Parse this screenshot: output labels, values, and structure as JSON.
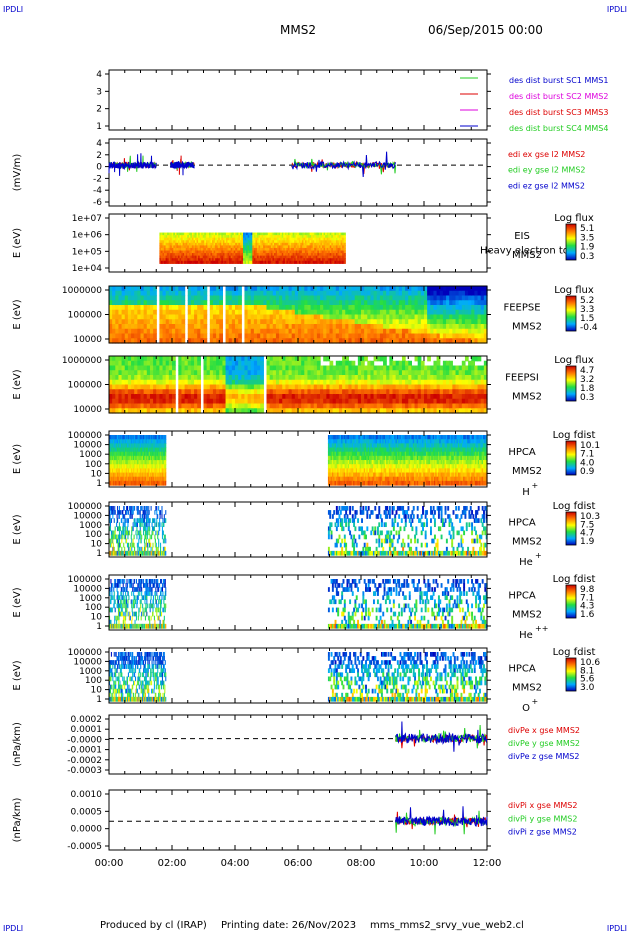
{
  "corner_tags": {
    "tl": "IPDLI",
    "tr": "IPDLI",
    "bl": "IPDLI",
    "br": "IPDLI"
  },
  "header": {
    "spacecraft": "MMS2",
    "datetime": "06/Sep/2015 00:00"
  },
  "footer": {
    "produced_by": "Produced by cl (IRAP)",
    "printing_date": "Printing date: 26/Nov/2023",
    "script": "mms_mms2_srvy_vue_web2.cl"
  },
  "colors": {
    "green": "#22cc22",
    "red": "#dd0000",
    "magenta": "#dd00dd",
    "blue": "#0000cc"
  },
  "chart_data": [
    {
      "type": "line",
      "id": "des_dist",
      "y_ticks": [
        "4",
        "3",
        "2",
        "1"
      ],
      "ylim": [
        0.7,
        4.5
      ],
      "legend": [
        {
          "label": "des dist burst SC1 MMS1",
          "label_color": "#0000cc",
          "line_color": "#22cc22"
        },
        {
          "label": "des dist burst SC2 MMS2",
          "label_color": "#dd00dd",
          "line_color": "#dd0000"
        },
        {
          "label": "des dist burst SC3 MMS3",
          "label_color": "#dd0000",
          "line_color": "#dd00dd"
        },
        {
          "label": "des dist burst SC4 MMS4",
          "label_color": "#22cc22",
          "line_color": "#0000cc"
        }
      ]
    },
    {
      "type": "line",
      "id": "edi",
      "ylabel": "(mV/m)",
      "y_ticks": [
        "4",
        "2",
        "0",
        "-2",
        "-4",
        "-6"
      ],
      "ylim": [
        -7,
        5
      ],
      "series": [
        {
          "name": "edi ex gse l2 MMS2",
          "color": "#dd0000"
        },
        {
          "name": "edi ey gse l2 MMS2",
          "color": "#22cc22"
        },
        {
          "name": "edi ez gse l2 MMS2",
          "color": "#0000cc"
        }
      ],
      "segments": [
        {
          "x": [
            0.0,
            1.5
          ]
        },
        {
          "x": [
            1.95,
            2.7
          ]
        },
        {
          "x": [
            5.8,
            9.1
          ]
        }
      ]
    },
    {
      "type": "heatmap",
      "id": "eis",
      "ylabel": "E (eV)",
      "y_ticks": [
        "1e+07",
        "1e+06",
        "1e+05",
        "1e+04"
      ],
      "ylog": true,
      "label": "EIS",
      "label2": "MMS2",
      "extra": "Heavy electron to",
      "cb_title": "Log flux",
      "cb_ticks": [
        "5.1",
        "3.5",
        "1.9",
        "0.3"
      ],
      "coverage": [
        {
          "x": [
            1.6,
            7.5
          ]
        }
      ]
    },
    {
      "type": "heatmap",
      "id": "feepse",
      "ylabel": "E (eV)",
      "y_ticks": [
        "1000000",
        "100000",
        "10000"
      ],
      "ylog": true,
      "label": "FEEPSE",
      "label2": "MMS2",
      "cb_title": "Log flux",
      "cb_ticks": [
        "5.2",
        "3.3",
        "1.5",
        "-0.4"
      ],
      "coverage": [
        {
          "x": [
            0.0,
            12.0
          ]
        }
      ]
    },
    {
      "type": "heatmap",
      "id": "feepsi",
      "ylabel": "E (eV)",
      "y_ticks": [
        "1000000",
        "100000",
        "10000"
      ],
      "ylog": true,
      "label": "FEEPSI",
      "label2": "MMS2",
      "cb_title": "Log flux",
      "cb_ticks": [
        "4.7",
        "3.2",
        "1.8",
        "0.3"
      ],
      "coverage": [
        {
          "x": [
            0.0,
            12.0
          ]
        }
      ]
    },
    {
      "type": "heatmap",
      "id": "hpca_h",
      "ylabel": "E (eV)",
      "y_ticks": [
        "100000",
        "10000",
        "1000",
        "100",
        "10",
        "1"
      ],
      "ylog": true,
      "label": "HPCA",
      "label2": "MMS2",
      "species": "H",
      "charge": "+",
      "cb_title": "Log fdist",
      "cb_ticks": [
        "10.1",
        "7.1",
        "4.0",
        "0.9"
      ],
      "coverage": [
        {
          "x": [
            0.0,
            1.8
          ]
        },
        {
          "x": [
            6.95,
            12.0
          ]
        }
      ]
    },
    {
      "type": "heatmap",
      "id": "hpca_he1",
      "ylabel": "E (eV)",
      "y_ticks": [
        "100000",
        "10000",
        "1000",
        "100",
        "10",
        "1"
      ],
      "ylog": true,
      "label": "HPCA",
      "label2": "MMS2",
      "species": "He",
      "charge": "+",
      "cb_title": "Log fdist",
      "cb_ticks": [
        "10.3",
        "7.5",
        "4.7",
        "1.9"
      ],
      "coverage": [
        {
          "x": [
            0.0,
            1.8
          ]
        },
        {
          "x": [
            6.95,
            12.0
          ]
        }
      ]
    },
    {
      "type": "heatmap",
      "id": "hpca_he2",
      "ylabel": "E (eV)",
      "y_ticks": [
        "100000",
        "10000",
        "1000",
        "100",
        "10",
        "1"
      ],
      "ylog": true,
      "label": "HPCA",
      "label2": "MMS2",
      "species": "He",
      "charge": "++",
      "cb_title": "Log fdist",
      "cb_ticks": [
        "9.8",
        "7.1",
        "4.3",
        "1.6"
      ],
      "coverage": [
        {
          "x": [
            0.0,
            1.8
          ]
        },
        {
          "x": [
            6.95,
            12.0
          ]
        }
      ]
    },
    {
      "type": "heatmap",
      "id": "hpca_o",
      "ylabel": "E (eV)",
      "y_ticks": [
        "100000",
        "10000",
        "1000",
        "100",
        "10",
        "1"
      ],
      "ylog": true,
      "label": "HPCA",
      "label2": "MMS2",
      "species": "O",
      "charge": "+",
      "cb_title": "Log fdist",
      "cb_ticks": [
        "10.6",
        "8.1",
        "5.6",
        "3.0"
      ],
      "coverage": [
        {
          "x": [
            0.0,
            1.8
          ]
        },
        {
          "x": [
            6.95,
            12.0
          ]
        }
      ]
    },
    {
      "type": "line",
      "id": "divpe",
      "ylabel": "(nPa/km)",
      "y_ticks": [
        "0.0002",
        "0.0001",
        "-0.0000",
        "-0.0001",
        "-0.0002",
        "-0.0003"
      ],
      "ylim": [
        -0.00035,
        0.0002
      ],
      "series": [
        {
          "name": "divPe x gse MMS2",
          "color": "#dd0000"
        },
        {
          "name": "divPe y gse MMS2",
          "color": "#22cc22"
        },
        {
          "name": "divPe z gse MMS2",
          "color": "#0000cc"
        }
      ],
      "segments": [
        {
          "x": [
            9.1,
            12.0
          ]
        }
      ]
    },
    {
      "type": "line",
      "id": "divpi",
      "ylabel": "(nPa/km)",
      "y_ticks": [
        "0.0010",
        "0.0005",
        "0.0000",
        "-0.0005"
      ],
      "ylim": [
        -0.00085,
        0.0011
      ],
      "series": [
        {
          "name": "divPi x gse MMS2",
          "color": "#dd0000"
        },
        {
          "name": "divPi y gse MMS2",
          "color": "#22cc22"
        },
        {
          "name": "divPi z gse MMS2",
          "color": "#0000cc"
        }
      ],
      "segments": [
        {
          "x": [
            9.1,
            12.0
          ]
        }
      ]
    }
  ],
  "x_axis": {
    "range_hours": [
      0,
      12
    ],
    "tick_labels": [
      "00:00",
      "02:00",
      "04:00",
      "06:00",
      "08:00",
      "10:00",
      "12:00"
    ]
  }
}
